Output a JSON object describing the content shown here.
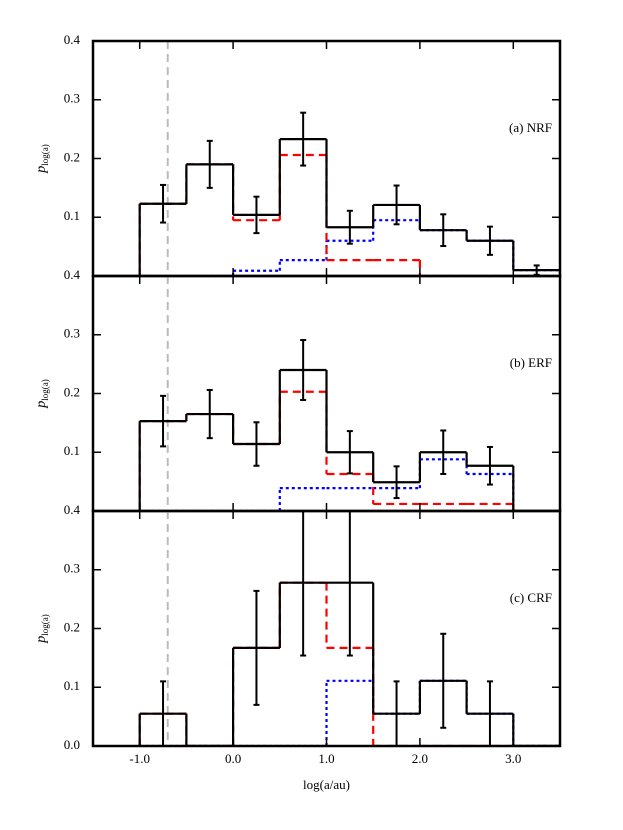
{
  "chart_data": [
    {
      "type": "step-histogram",
      "annotation": "(a) NRF",
      "ylabel": "p",
      "ylabel_sub": "log(a)",
      "xlim": [
        -1.5,
        3.5
      ],
      "ylim": [
        0,
        0.4
      ],
      "yticks": [
        0.1,
        0.2,
        0.3,
        0.4
      ],
      "vline": -0.7,
      "vline_color": "#bbbbbb",
      "bins": [
        -1.0,
        -0.5,
        0.0,
        0.5,
        1.0,
        1.5,
        2.0,
        2.5,
        3.0,
        3.5
      ],
      "series": [
        {
          "color": "#0000ff",
          "style": "dotted",
          "values": [
            0,
            0,
            0.009,
            0.027,
            0.06,
            0.095,
            0.078,
            0.06,
            0.01
          ]
        },
        {
          "color": "#ff0000",
          "style": "dashed",
          "values": [
            0.123,
            0.19,
            0.095,
            0.206,
            0.027,
            0.027,
            0,
            0,
            0
          ]
        },
        {
          "color": "#000000",
          "style": "solid",
          "values": [
            0.123,
            0.19,
            0.104,
            0.233,
            0.083,
            0.121,
            0.078,
            0.06,
            0.01
          ],
          "errors": [
            0.032,
            0.04,
            0.031,
            0.045,
            0.028,
            0.033,
            0.027,
            0.024,
            0.008
          ]
        }
      ]
    },
    {
      "type": "step-histogram",
      "annotation": "(b) ERF",
      "ylabel": "p",
      "ylabel_sub": "log(a)",
      "xlim": [
        -1.5,
        3.5
      ],
      "ylim": [
        0,
        0.4
      ],
      "yticks": [
        0.1,
        0.2,
        0.3,
        0.4
      ],
      "vline": -0.7,
      "vline_color": "#bbbbbb",
      "bins": [
        -1.0,
        -0.5,
        0.0,
        0.5,
        1.0,
        1.5,
        2.0,
        2.5,
        3.0,
        3.5
      ],
      "series": [
        {
          "color": "#0000ff",
          "style": "dotted",
          "values": [
            0,
            0,
            0,
            0.039,
            0.039,
            0.039,
            0.088,
            0.063,
            0
          ]
        },
        {
          "color": "#ff0000",
          "style": "dashed",
          "values": [
            0.153,
            0.165,
            0.114,
            0.203,
            0.063,
            0.012,
            0.012,
            0.012,
            0
          ]
        },
        {
          "color": "#000000",
          "style": "solid",
          "values": [
            0.153,
            0.165,
            0.114,
            0.24,
            0.1,
            0.049,
            0.1,
            0.077,
            0
          ],
          "errors": [
            0.043,
            0.041,
            0.037,
            0.051,
            0.036,
            0.027,
            0.037,
            0.032,
            null
          ]
        }
      ]
    },
    {
      "type": "step-histogram",
      "annotation": "(c) CRF",
      "ylabel": "p",
      "ylabel_sub": "log(a)",
      "xlabel": "log(a/au)",
      "xlim": [
        -1.5,
        3.5
      ],
      "ylim": [
        0,
        0.4
      ],
      "yticks": [
        {
          "value": 0,
          "label": "0.0"
        },
        0.1,
        0.2,
        0.3,
        0.4
      ],
      "xticks": [
        {
          "value": -1,
          "label": "-1.0"
        },
        {
          "value": 0,
          "label": "0.0"
        },
        {
          "value": 1,
          "label": "1.0"
        },
        {
          "value": 2,
          "label": "2.0"
        },
        {
          "value": 3,
          "label": "3.0"
        }
      ],
      "vline": -0.7,
      "vline_color": "#bbbbbb",
      "bins": [
        -1.0,
        -0.5,
        0.0,
        0.5,
        1.0,
        1.5,
        2.0,
        2.5,
        3.0,
        3.5
      ],
      "series": [
        {
          "color": "#0000ff",
          "style": "dotted",
          "values": [
            0,
            0,
            0,
            0,
            0.111,
            0.055,
            0.111,
            0.055,
            0
          ]
        },
        {
          "color": "#ff0000",
          "style": "dashed",
          "values": [
            0.055,
            0,
            0.167,
            0.278,
            0.167,
            0,
            0,
            0,
            0
          ]
        },
        {
          "color": "#000000",
          "style": "solid",
          "values": [
            0.055,
            0,
            0.167,
            0.278,
            0.278,
            0.055,
            0.111,
            0.055,
            0
          ],
          "errors": [
            0.055,
            null,
            0.097,
            0.124,
            0.124,
            0.055,
            0.08,
            0.055,
            null
          ]
        }
      ]
    }
  ]
}
